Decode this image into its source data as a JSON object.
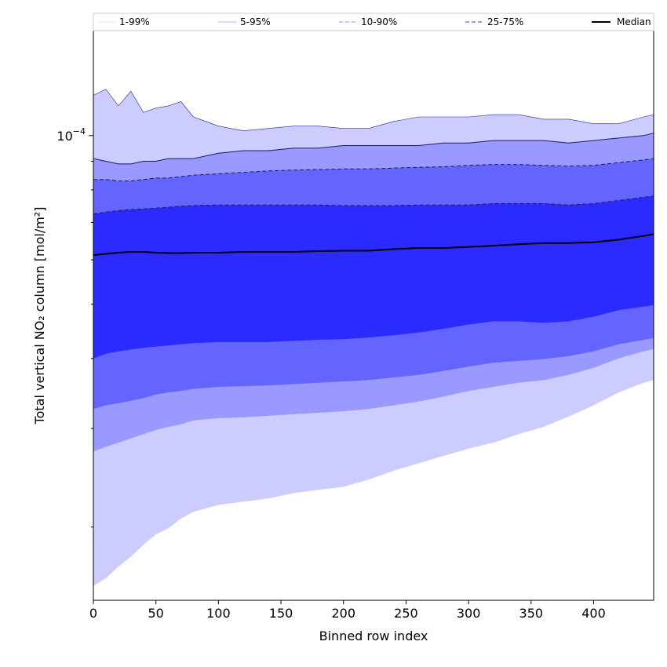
{
  "chart_data": {
    "type": "area",
    "xlabel": "Binned row index",
    "ylabel": "Total vertical NO₂ column [mol/m²]",
    "yscale": "log",
    "xlim": [
      0,
      448
    ],
    "ylim": [
      1.48e-05,
      0.000154
    ],
    "x_ticks": [
      0,
      50,
      100,
      150,
      200,
      250,
      300,
      350,
      400
    ],
    "y_major_ticks": [
      {
        "value": 0.0001,
        "base": "10",
        "exp": "−4"
      }
    ],
    "y_minor_ticks": [
      2e-05,
      3e-05,
      4e-05,
      5e-05,
      6e-05,
      7e-05,
      8e-05,
      9e-05
    ],
    "grid": false,
    "legend_position": "top",
    "legend": [
      {
        "label": "1-99%",
        "color": "#e4e4fa",
        "style": "solid"
      },
      {
        "label": "5-95%",
        "color": "#b8b8f0",
        "style": "solid"
      },
      {
        "label": "10-90%",
        "color": "#9090f5",
        "style": "dashed"
      },
      {
        "label": "25-75%",
        "color": "#3a3adc",
        "style": "dashed"
      },
      {
        "label": "Median",
        "color": "#000000",
        "style": "solid"
      }
    ],
    "x": [
      0,
      10,
      20,
      30,
      40,
      50,
      60,
      70,
      80,
      100,
      120,
      140,
      160,
      180,
      200,
      220,
      240,
      260,
      280,
      300,
      320,
      340,
      360,
      380,
      400,
      420,
      440,
      448
    ],
    "bands": [
      {
        "name": "1-99%",
        "color": "#ccccff",
        "upper": [
          0.000118,
          0.000121,
          0.000113,
          0.00012,
          0.00011,
          0.000112,
          0.000113,
          0.000115,
          0.000108,
          0.000104,
          0.000102,
          0.000103,
          0.000104,
          0.000104,
          0.000103,
          0.000103,
          0.000106,
          0.000108,
          0.000108,
          0.000108,
          0.000109,
          0.000109,
          0.000107,
          0.000107,
          0.000105,
          0.000105,
          0.000108,
          0.000109
        ],
        "lower": [
          1.57e-05,
          1.62e-05,
          1.7e-05,
          1.77e-05,
          1.86e-05,
          1.94e-05,
          1.99e-05,
          2.07e-05,
          2.13e-05,
          2.19e-05,
          2.22e-05,
          2.25e-05,
          2.3e-05,
          2.33e-05,
          2.36e-05,
          2.43e-05,
          2.52e-05,
          2.6e-05,
          2.68e-05,
          2.76e-05,
          2.83e-05,
          2.93e-05,
          3.02e-05,
          3.15e-05,
          3.3e-05,
          3.48e-05,
          3.62e-05,
          3.66e-05
        ]
      },
      {
        "name": "5-95%",
        "color": "#9999ff",
        "upper": [
          9.1e-05,
          9e-05,
          8.9e-05,
          8.9e-05,
          9e-05,
          9e-05,
          9.1e-05,
          9.1e-05,
          9.1e-05,
          9.3e-05,
          9.4e-05,
          9.4e-05,
          9.5e-05,
          9.5e-05,
          9.6e-05,
          9.6e-05,
          9.6e-05,
          9.6e-05,
          9.7e-05,
          9.7e-05,
          9.8e-05,
          9.8e-05,
          9.8e-05,
          9.7e-05,
          9.8e-05,
          9.9e-05,
          0.0001,
          0.000101
        ],
        "lower": [
          2.73e-05,
          2.78e-05,
          2.83e-05,
          2.88e-05,
          2.93e-05,
          2.98e-05,
          3.02e-05,
          3.05e-05,
          3.1e-05,
          3.13e-05,
          3.14e-05,
          3.16e-05,
          3.18e-05,
          3.2e-05,
          3.22e-05,
          3.25e-05,
          3.3e-05,
          3.35e-05,
          3.42e-05,
          3.5e-05,
          3.56e-05,
          3.62e-05,
          3.66e-05,
          3.74e-05,
          3.85e-05,
          4e-05,
          4.12e-05,
          4.16e-05
        ]
      },
      {
        "name": "10-90%",
        "color": "#6464ff",
        "upper": [
          8.35e-05,
          8.35e-05,
          8.3e-05,
          8.3e-05,
          8.35e-05,
          8.4e-05,
          8.4e-05,
          8.45e-05,
          8.5e-05,
          8.55e-05,
          8.6e-05,
          8.65e-05,
          8.68e-05,
          8.7e-05,
          8.72e-05,
          8.72e-05,
          8.75e-05,
          8.78e-05,
          8.8e-05,
          8.85e-05,
          8.88e-05,
          8.88e-05,
          8.85e-05,
          8.82e-05,
          8.85e-05,
          8.95e-05,
          9.05e-05,
          9.1e-05
        ],
        "lower": [
          3.25e-05,
          3.3e-05,
          3.33e-05,
          3.36e-05,
          3.4e-05,
          3.45e-05,
          3.48e-05,
          3.5e-05,
          3.53e-05,
          3.56e-05,
          3.57e-05,
          3.58e-05,
          3.6e-05,
          3.62e-05,
          3.64e-05,
          3.66e-05,
          3.7e-05,
          3.74e-05,
          3.8e-05,
          3.87e-05,
          3.93e-05,
          3.96e-05,
          3.99e-05,
          4.04e-05,
          4.12e-05,
          4.24e-05,
          4.32e-05,
          4.35e-05
        ]
      },
      {
        "name": "25-75%",
        "color": "#2b2bff",
        "upper": [
          7.25e-05,
          7.3e-05,
          7.35e-05,
          7.38e-05,
          7.4e-05,
          7.42e-05,
          7.45e-05,
          7.48e-05,
          7.5e-05,
          7.52e-05,
          7.52e-05,
          7.52e-05,
          7.52e-05,
          7.52e-05,
          7.5e-05,
          7.5e-05,
          7.5e-05,
          7.52e-05,
          7.52e-05,
          7.52e-05,
          7.56e-05,
          7.56e-05,
          7.56e-05,
          7.52e-05,
          7.56e-05,
          7.66e-05,
          7.76e-05,
          7.8e-05
        ],
        "lower": [
          4e-05,
          4.08e-05,
          4.12e-05,
          4.15e-05,
          4.18e-05,
          4.2e-05,
          4.22e-05,
          4.24e-05,
          4.26e-05,
          4.28e-05,
          4.28e-05,
          4.28e-05,
          4.3e-05,
          4.32e-05,
          4.33e-05,
          4.36e-05,
          4.4e-05,
          4.45e-05,
          4.52e-05,
          4.6e-05,
          4.66e-05,
          4.66e-05,
          4.63e-05,
          4.66e-05,
          4.75e-05,
          4.88e-05,
          4.95e-05,
          4.98e-05
        ]
      }
    ],
    "median": {
      "name": "Median",
      "color": "#000000",
      "values": [
        6.12e-05,
        6.15e-05,
        6.18e-05,
        6.2e-05,
        6.2e-05,
        6.18e-05,
        6.17e-05,
        6.17e-05,
        6.18e-05,
        6.18e-05,
        6.2e-05,
        6.2e-05,
        6.2e-05,
        6.22e-05,
        6.23e-05,
        6.23e-05,
        6.27e-05,
        6.3e-05,
        6.3e-05,
        6.33e-05,
        6.36e-05,
        6.4e-05,
        6.43e-05,
        6.43e-05,
        6.45e-05,
        6.52e-05,
        6.62e-05,
        6.67e-05
      ]
    }
  }
}
